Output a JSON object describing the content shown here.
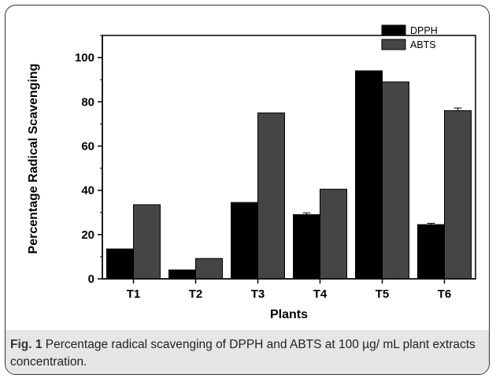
{
  "chart_data": {
    "type": "bar",
    "categories": [
      "T1",
      "T2",
      "T3",
      "T4",
      "T5",
      "T6"
    ],
    "series": [
      {
        "name": "DPPH",
        "values": [
          13.5,
          4,
          34.5,
          29,
          94,
          24.5
        ],
        "errors": [
          0,
          0,
          0,
          0.8,
          0,
          0.6
        ],
        "color": "#000000"
      },
      {
        "name": "ABTS",
        "values": [
          33.5,
          9.2,
          75,
          40.5,
          89,
          76
        ],
        "errors": [
          0,
          0,
          0,
          0,
          0,
          1.2
        ],
        "color": "#454545"
      }
    ],
    "title": "",
    "xlabel": "Plants",
    "ylabel": "Percentage Radical Scavenging",
    "ylim": [
      0,
      110
    ],
    "yticks": [
      0,
      20,
      40,
      60,
      80,
      100
    ],
    "legend_position": "top-right",
    "grid": false
  },
  "caption": {
    "label": "Fig. 1",
    "text": " Percentage radical scavenging of DPPH and ABTS at 100 µg/ mL plant extracts concentration."
  }
}
